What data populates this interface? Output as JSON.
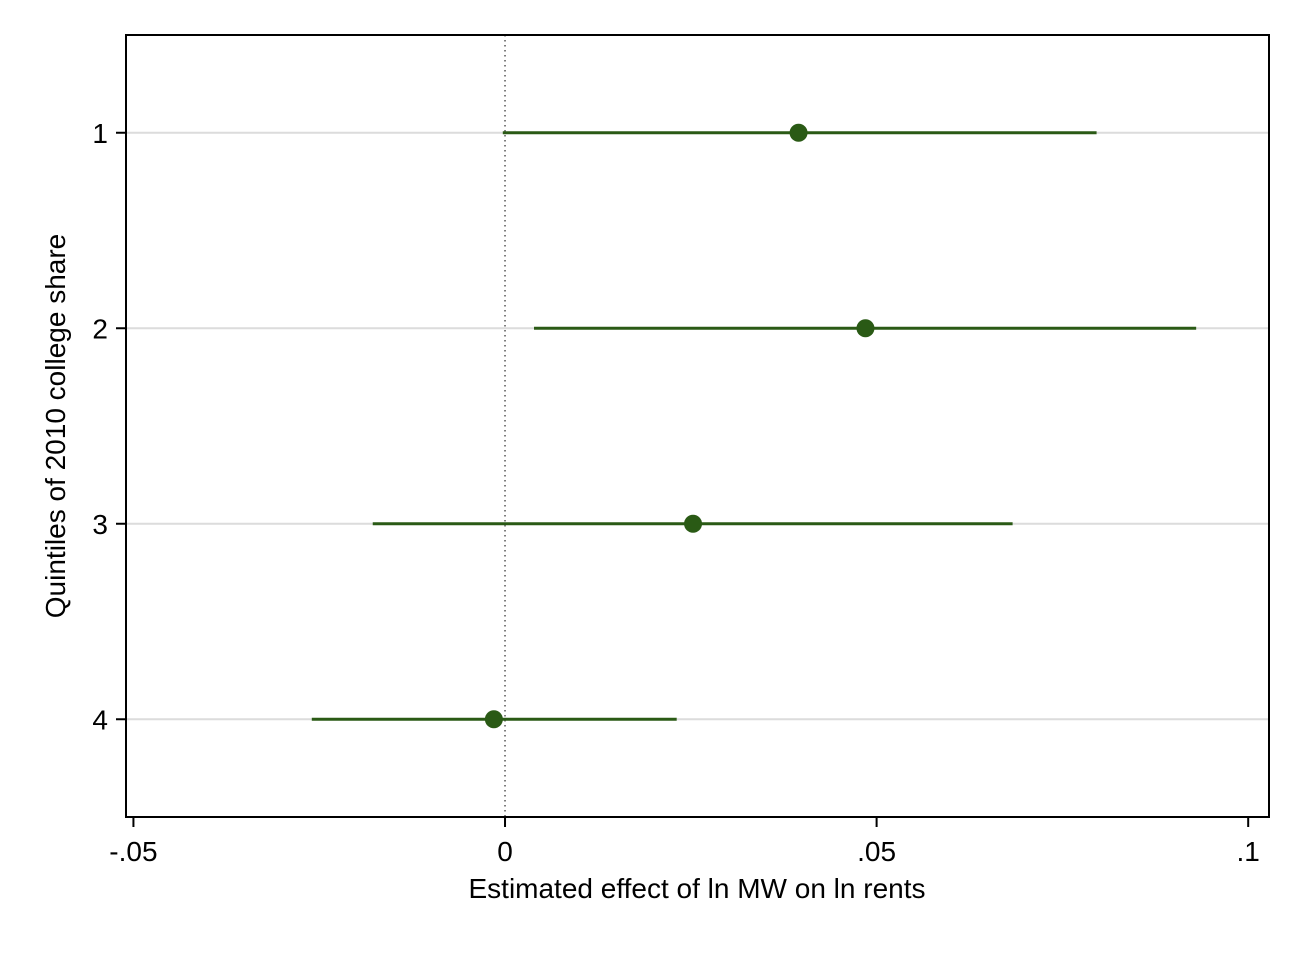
{
  "chart_data": {
    "type": "scatter",
    "subtype": "coefficient-plot-with-confidence-intervals",
    "orientation": "horizontal",
    "title": "",
    "xlabel": "Estimated effect of ln MW on ln rents",
    "ylabel": "Quintiles of 2010 college share",
    "xlim": [
      -0.051,
      0.1028
    ],
    "x_ticks": [
      -0.05,
      0,
      0.05,
      0.1
    ],
    "x_tick_labels": [
      "-.05",
      "0",
      ".05",
      ".1"
    ],
    "ylim": [
      0.5,
      4.5
    ],
    "y_ticks": [
      1,
      2,
      3,
      4
    ],
    "y_tick_labels": [
      "1",
      "2",
      "3",
      "4"
    ],
    "reference_line": {
      "x": 0,
      "style": "dotted"
    },
    "grid": "horizontal",
    "legend": "none",
    "colors": {
      "marker": "#2a5a15",
      "ci_line": "#2a5a15",
      "grid": "#dcdcdc",
      "axis": "#000000",
      "reference_line": "#555555"
    },
    "series": [
      {
        "points": [
          {
            "category": "1",
            "y": 1,
            "estimate": 0.0395,
            "ci_low": -0.0003,
            "ci_high": 0.0796
          },
          {
            "category": "2",
            "y": 2,
            "estimate": 0.0485,
            "ci_low": 0.0039,
            "ci_high": 0.093
          },
          {
            "category": "3",
            "y": 3,
            "estimate": 0.0253,
            "ci_low": -0.0178,
            "ci_high": 0.0683
          },
          {
            "category": "4",
            "y": 4,
            "estimate": -0.0015,
            "ci_low": -0.026,
            "ci_high": 0.0231
          }
        ]
      }
    ]
  }
}
